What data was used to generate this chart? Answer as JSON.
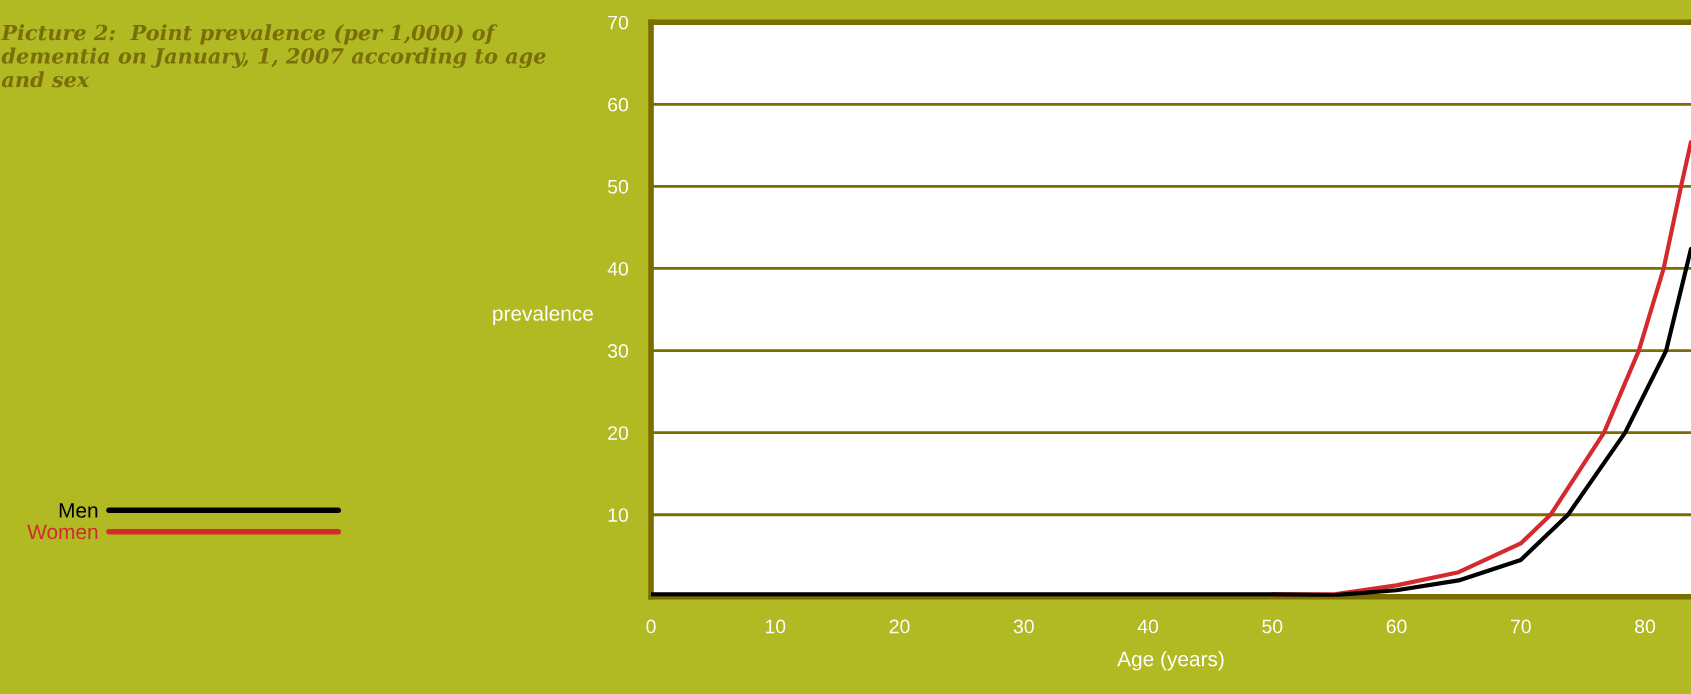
{
  "chart_data": {
    "type": "line",
    "title": "Picture 2:  Point prevalence (per 1,000) of dementia on January, 1, 2007 according to age and sex",
    "xlabel": "Age (years)",
    "ylabel": "prevalence",
    "series": [
      {
        "name": "Men",
        "color": "#000000",
        "x": [
          0,
          20,
          40,
          50,
          55,
          60,
          65,
          70,
          73.8,
          78.4,
          81.7,
          83.7
        ],
        "values": [
          0.3,
          0.3,
          0.3,
          0.3,
          0.2,
          0.8,
          2.0,
          4.5,
          10,
          20,
          30,
          42.4
        ]
      },
      {
        "name": "Women",
        "color": "#d42a2e",
        "x": [
          50,
          55,
          60,
          65,
          70,
          72.4,
          76.7,
          79.5,
          81.5,
          82.9,
          83.7
        ],
        "values": [
          0.3,
          0.3,
          1.4,
          3.0,
          6.5,
          10,
          20,
          30,
          40,
          50,
          55.4
        ]
      }
    ],
    "xlim": [
      0,
      83.7
    ],
    "xticks": [
      0,
      10,
      20,
      30,
      40,
      50,
      60,
      70,
      80
    ],
    "ylim": [
      0,
      70
    ],
    "yticks": [
      {
        "value": 0,
        "label": null
      },
      10,
      20,
      30,
      40,
      50,
      60,
      70
    ],
    "grid": "y",
    "legend": "left",
    "marker": "none",
    "line_style": "solid"
  }
}
